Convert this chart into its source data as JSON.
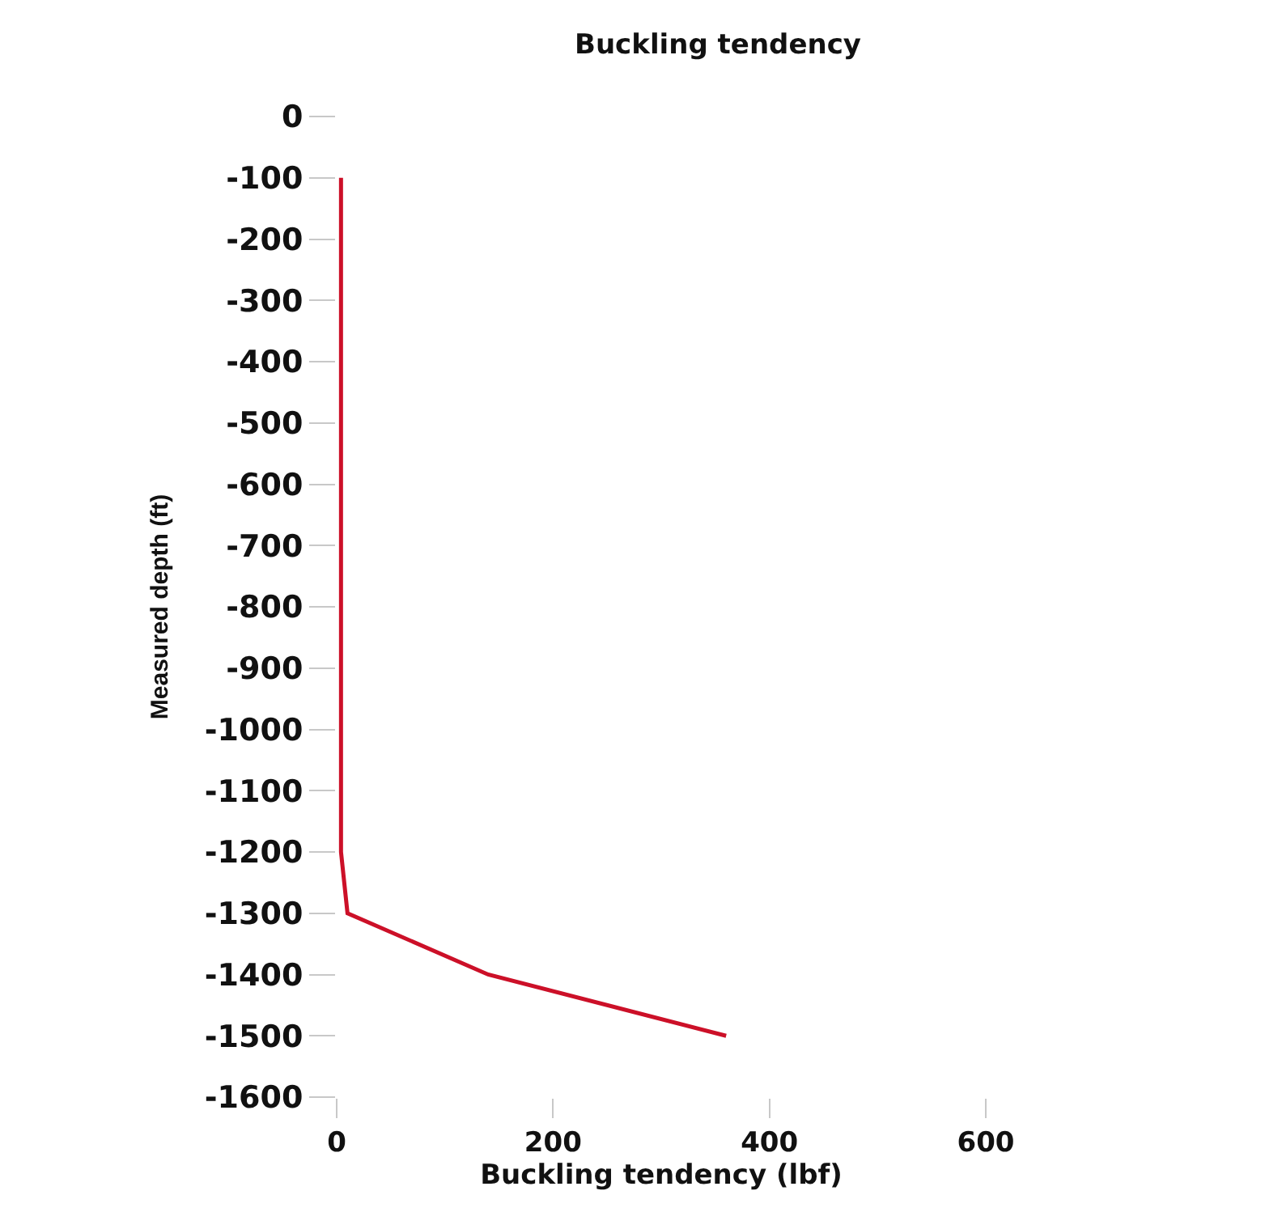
{
  "chart_data": {
    "type": "line",
    "title": "Buckling tendency",
    "xlabel": "Buckling tendency (lbf)",
    "ylabel": "Measured depth (ft)",
    "x": [
      4,
      4,
      10,
      140,
      360
    ],
    "values": [
      -100,
      -1200,
      -1300,
      -1400,
      -1500
    ],
    "color": "#cc1028",
    "line_style": "solid",
    "xlim": [
      0,
      600
    ],
    "ylim": [
      -1600,
      0
    ],
    "xticks": [
      0,
      200,
      400,
      600
    ],
    "yticks": [
      0,
      -100,
      -200,
      -300,
      -400,
      -500,
      -600,
      -700,
      -800,
      -900,
      -1000,
      -1100,
      -1200,
      -1300,
      -1400,
      -1500,
      -1600
    ],
    "grid": false
  }
}
